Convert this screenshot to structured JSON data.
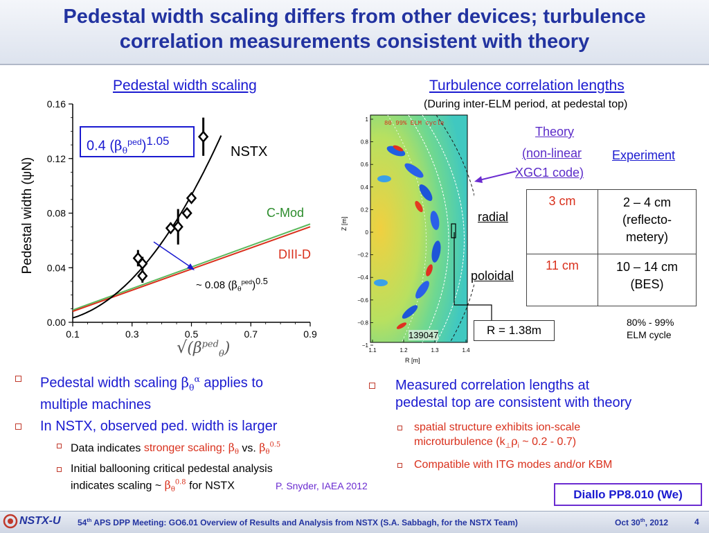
{
  "title": {
    "line1": "Pedestal width scaling differs from other devices; turbulence",
    "line2": "correlation measurements consistent with theory"
  },
  "left_panel": {
    "heading": "Pedestal width scaling",
    "fit_box": {
      "coef": "0.4 (",
      "beta": "β",
      "theta": "θ",
      "ped": "ped",
      "close": ")",
      "exp": "1.05"
    },
    "nstx_label": "NSTX",
    "cmod_label": "C-Mod",
    "diiid_label": "DIII-D",
    "scaling_note": {
      "prefix": "~ 0.08 (",
      "beta": "β",
      "theta": "θ",
      "ped": "ped",
      "close": ")",
      "exp": "0.5"
    },
    "colors": {
      "nstx": "#000000",
      "cmod": "#5cb85c",
      "diiid": "#d9301c",
      "fit_box_border": "#1a1ad0"
    }
  },
  "chart_data": {
    "type": "scatter",
    "ylabel": "Pedestal width (ψN)",
    "xlabel": "√(βθ^ped)",
    "x_ticks": [
      "0.1",
      "0.3",
      "0.5",
      "0.7",
      "0.9"
    ],
    "y_ticks": [
      "0.00",
      "0.04",
      "0.08",
      "0.12",
      "0.16"
    ],
    "xlim": [
      0.1,
      0.9
    ],
    "ylim": [
      0.0,
      0.16
    ],
    "series": [
      {
        "name": "NSTX",
        "points": [
          {
            "x": 0.32,
            "y": 0.047,
            "err": 0.006
          },
          {
            "x": 0.335,
            "y": 0.043,
            "err": 0.005
          },
          {
            "x": 0.335,
            "y": 0.034,
            "err": 0.005
          },
          {
            "x": 0.43,
            "y": 0.069,
            "err": 0.004
          },
          {
            "x": 0.455,
            "y": 0.07,
            "err": 0.013
          },
          {
            "x": 0.485,
            "y": 0.08,
            "err": 0.003
          },
          {
            "x": 0.5,
            "y": 0.091,
            "err": 0.003
          },
          {
            "x": 0.54,
            "y": 0.136,
            "err": 0.014
          }
        ]
      }
    ],
    "curves": [
      {
        "name": "NSTX fit",
        "coef": 0.4,
        "power": 2.1,
        "x_range": [
          0.1,
          0.6
        ]
      },
      {
        "name": "C-Mod",
        "x_range": [
          0.1,
          0.9
        ],
        "y_range": [
          0.009,
          0.072
        ]
      },
      {
        "name": "DIII-D",
        "x_range": [
          0.1,
          0.9
        ],
        "y_range": [
          0.008,
          0.07
        ]
      }
    ],
    "grid": false
  },
  "right_panel": {
    "heading": "Turbulence correlation lengths",
    "subheading": "(During inter-ELM period, at pedestal top)",
    "contour": {
      "annotation": "80  99% ELM cycle",
      "shot": "139047",
      "r_label": "R = 1.38m",
      "ylabel": "Z [m]",
      "xlabel": "R [m]",
      "y_ticks": [
        "1",
        "0.8",
        "0.6",
        "0.4",
        "0.2",
        "0",
        "−0.2",
        "−0.4",
        "−0.6",
        "−0.8",
        "−1"
      ],
      "x_ticks": [
        "1.1",
        "1.2",
        "1.3",
        "1.4"
      ]
    },
    "table": {
      "theory_header": [
        "Theory",
        "(non-linear",
        "XGC1 code)"
      ],
      "experiment_header": "Experiment",
      "rows": [
        {
          "label": "radial",
          "theory": "3 cm",
          "experiment": [
            "2 – 4 cm",
            "(reflecto-",
            "metery)"
          ]
        },
        {
          "label": "poloidal",
          "theory": "11 cm",
          "experiment": [
            "10 – 14 cm",
            "(BES)"
          ]
        }
      ]
    },
    "elm_note": [
      "80% - 99%",
      "ELM cycle"
    ]
  },
  "bullets_left": {
    "b1_pre": "Pedestal width scaling ",
    "b1_beta": "β",
    "b1_theta": "θ",
    "b1_alpha": "α",
    "b1_post": " applies to",
    "b1_line2": "multiple machines",
    "b2": "In NSTX, observed ped. width is larger",
    "s1_pre": "Data indicates ",
    "s1_red": "stronger scaling: ",
    "s1_beta1": "β",
    "s1_theta1": "θ",
    "s1_vs": " vs. ",
    "s1_beta2": "β",
    "s1_theta2": "θ",
    "s1_exp": "0.5",
    "s2_line1": "Initial ballooning critical pedestal analysis",
    "s2_pre": "indicates scaling ~ ",
    "s2_beta": "β",
    "s2_theta": "θ",
    "s2_exp": "0.8",
    "s2_post": " for NSTX",
    "citation": "P. Snyder, IAEA 2012"
  },
  "bullets_right": {
    "b1_line1": "Measured correlation lengths at",
    "b1_line2": "pedestal top are consistent with theory",
    "s1_line1": "spatial structure exhibits ion-scale",
    "s1_line2_pre": "microturbulence (k",
    "s1_perp": "⊥",
    "s1_rho": "ρ",
    "s1_i": "i",
    "s1_line2_post": " ~ 0.2 - 0.7)",
    "s2": "Compatible with ITG modes and/or KBM",
    "poster": "Diallo PP8.010 (We)"
  },
  "footer": {
    "logo": "NSTX-U",
    "text_pre": "54",
    "text_th": "th",
    "text_main": " APS DPP Meeting: GO6.01 Overview of Results and Analysis from NSTX (S.A. Sabbagh, for the NSTX Team)",
    "date_pre": "Oct 30",
    "date_th": "th",
    "date_post": ", 2012",
    "page": "4"
  }
}
